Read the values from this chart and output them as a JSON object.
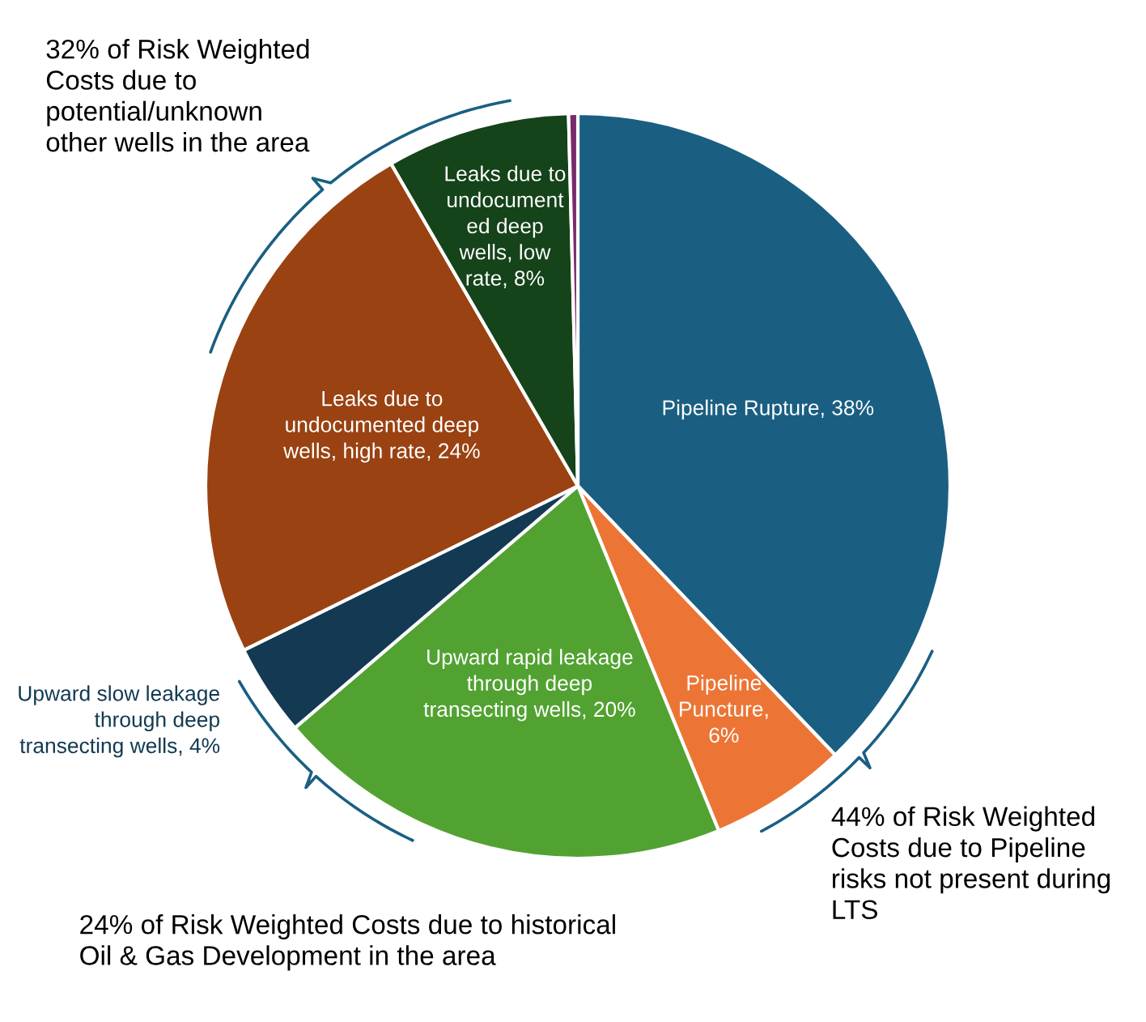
{
  "chart_data": {
    "type": "pie",
    "categories": [
      "Pipeline Rupture, 38%",
      "Pipeline\nPuncture,\n6%",
      "Upward rapid leakage\nthrough deep\ntransecting wells, 20%",
      "Upward slow leakage\nthrough deep\ntransecting wells, 4%",
      "Leaks due to\nundocumented deep\nwells, high rate, 24%",
      "Leaks due to\nundocument\ned deep\nwells, low\nrate, 8%",
      null
    ],
    "values": [
      38,
      6,
      20,
      4,
      24,
      8,
      0.4
    ],
    "colors": [
      "#1a5f82",
      "#ec7535",
      "#52a232",
      "#133a52",
      "#9a4212",
      "#15431a",
      "#7a2a6a"
    ],
    "annotations": [
      "32% of Risk Weighted\nCosts due to\npotential/unknown\nother wells in the area",
      "44% of Risk Weighted\nCosts due to Pipeline\nrisks not present during\nLTS",
      "24% of Risk Weighted Costs due to historical\nOil & Gas Development in the area"
    ]
  }
}
